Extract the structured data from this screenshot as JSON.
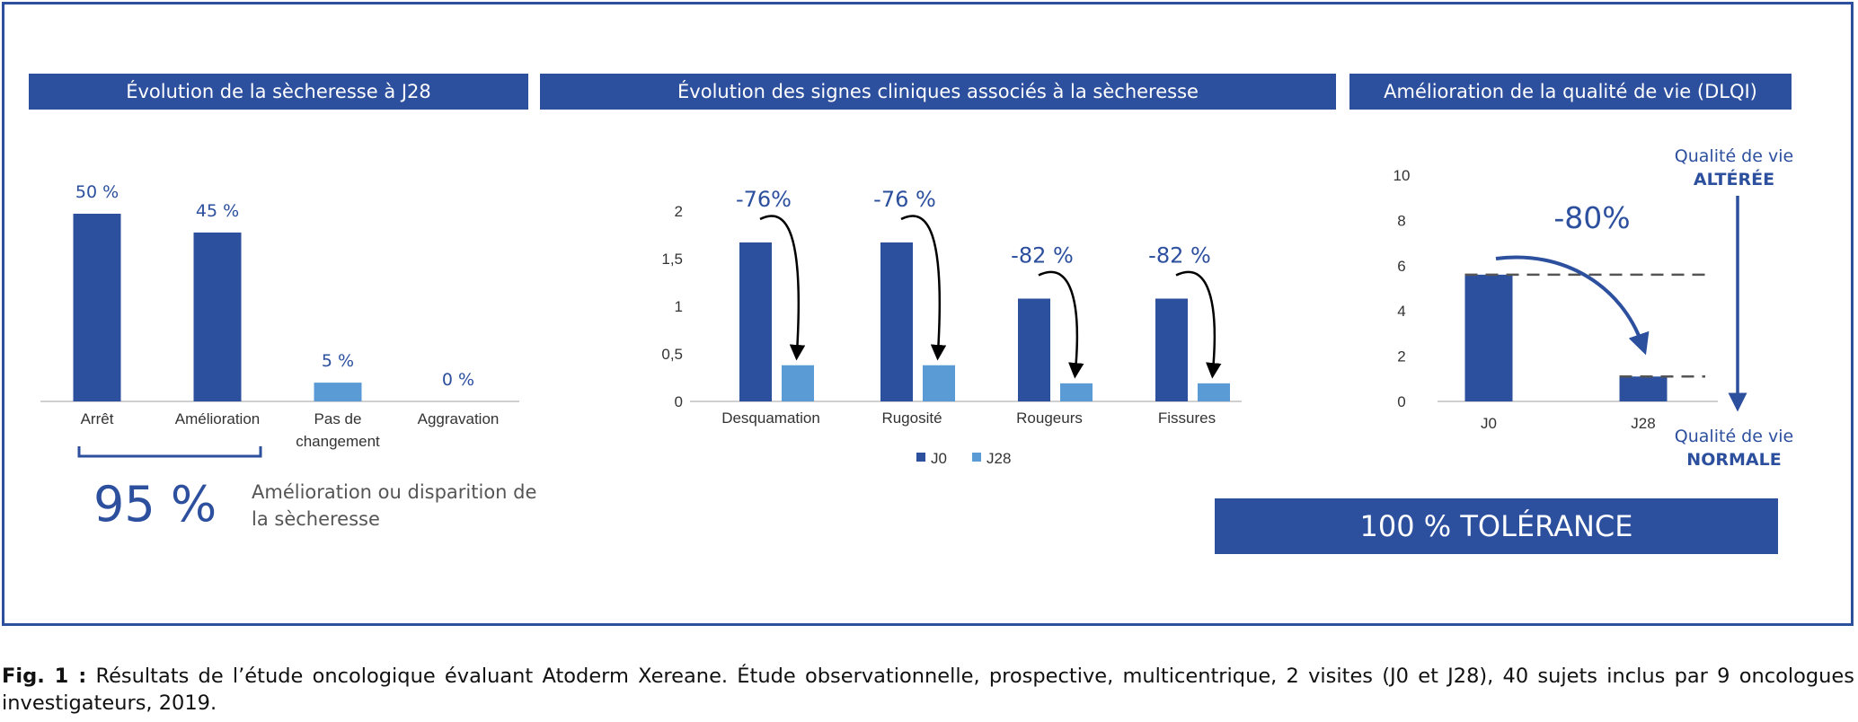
{
  "headers": {
    "panel1": "Évolution de la sècheresse à J28",
    "panel2": "Évolution des signes cliniques associés à la sècheresse",
    "panel3": "Amélioration de la qualité de vie (DLQI)"
  },
  "chart_data": [
    {
      "type": "bar",
      "title": "Évolution de la sècheresse à J28",
      "categories": [
        "Arrêt",
        "Amélioration",
        "Pas de changement",
        "Aggravation"
      ],
      "values": [
        50,
        45,
        5,
        0
      ],
      "data_labels": [
        "50 %",
        "45 %",
        "5 %",
        "0 %"
      ],
      "colors": [
        "#2c4f9e",
        "#2c4f9e",
        "#5b9bd5",
        "#5b9bd5"
      ],
      "ylim": [
        0,
        55
      ],
      "summary_value": "95 %",
      "summary_text": "Amélioration ou disparition de la sècheresse"
    },
    {
      "type": "bar",
      "title": "Évolution des signes cliniques associés à la sècheresse",
      "categories": [
        "Desquamation",
        "Rugosité",
        "Rougeurs",
        "Fissures"
      ],
      "series": [
        {
          "name": "J0",
          "values": [
            1.67,
            1.67,
            1.08,
            1.08
          ],
          "color": "#2c4f9e"
        },
        {
          "name": "J28",
          "values": [
            0.38,
            0.38,
            0.19,
            0.19
          ],
          "color": "#5b9bd5"
        }
      ],
      "reductions": [
        "-76%",
        "-76 %",
        "-82 %",
        "-82 %"
      ],
      "yticks": [
        "0",
        "0,5",
        "1",
        "1,5",
        "2"
      ],
      "ylim": [
        0,
        2
      ],
      "legend": "bottom"
    },
    {
      "type": "bar",
      "title": "Amélioration de la qualité de vie (DLQI)",
      "categories": [
        "J0",
        "J28"
      ],
      "values": [
        5.6,
        1.1
      ],
      "color": "#2c4f9e",
      "yticks": [
        "0",
        "2",
        "4",
        "6",
        "8",
        "10"
      ],
      "ylim": [
        0,
        10
      ],
      "reduction": "-80%",
      "top_label": [
        "Qualité de vie",
        "ALTÉRÉE"
      ],
      "bottom_label": [
        "Qualité de vie",
        "NORMALE"
      ]
    }
  ],
  "tolerance": "100 % TOLÉRANCE",
  "caption": {
    "bold": "Fig. 1 :",
    "text": " Résultats de l’étude oncologique évaluant Atoderm Xereane. Étude observationnelle, prospective, multicentrique, 2 visites (J0 et J28), 40 sujets inclus par 9 oncologues investigateurs, 2019."
  }
}
